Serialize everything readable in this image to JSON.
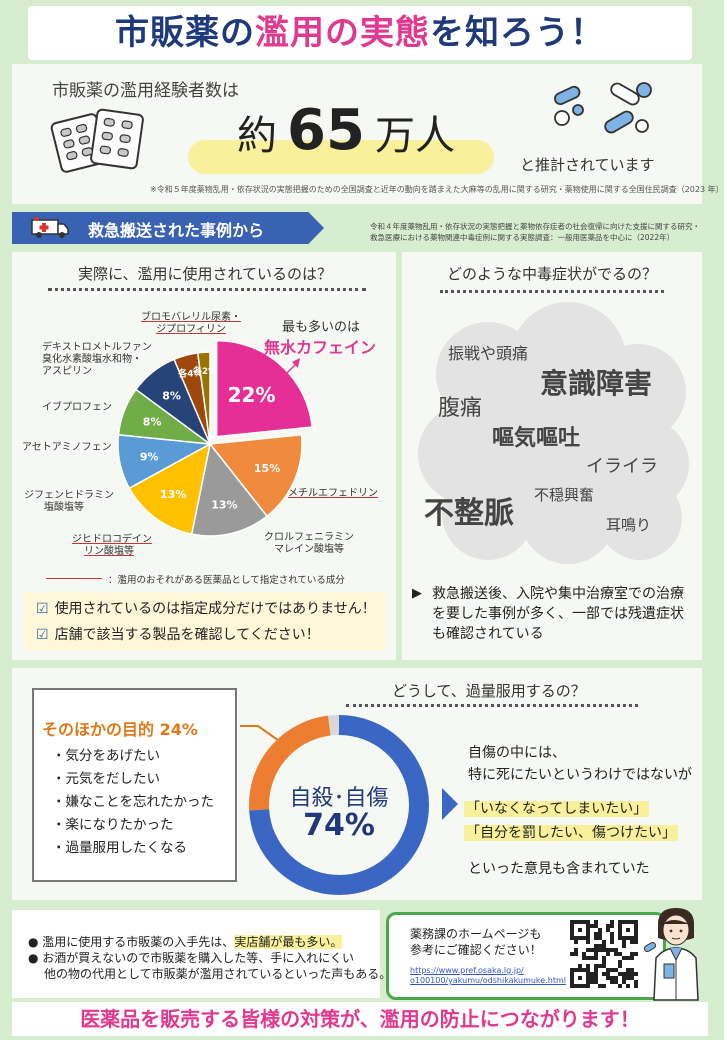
{
  "header": {
    "title_pre": "市販薬の",
    "title_pink": "濫用の実態",
    "title_post": "を知ろう！"
  },
  "stats": {
    "lead": "市販薬の濫用経験者数は",
    "prefix": "約",
    "number": "65",
    "unit": "万人",
    "tail": "と推計されています",
    "note": "※令和５年度薬物乱用・依存状況の実態把握のための全国調査と近年の動向を踏まえた大麻等の乱用に関する研究・薬物使用に関する全国住民調査（2023 年）"
  },
  "banner": {
    "label": "救急搬送された事例から",
    "note_line1": "令和４年度薬物乱用・依存状況の実態把握と薬物依存症者の社会復帰に向けた支援に関する研究・",
    "note_line2": "救急医療における薬物関連中毒症例に関する実態調査：一般用医薬品を中心に（2022年）"
  },
  "chart_panel": {
    "title": "実際に、濫用に使用されているのは？",
    "callout_top": "最も多いのは",
    "callout_main": "無水カフェイン",
    "legend_text": "：濫用のおそれがある医薬品として指定されている成分",
    "checks": [
      "使用されているのは指定成分だけではありません！",
      "店舗で該当する製品を確認してください！"
    ]
  },
  "chart_data": {
    "type": "pie",
    "title": "",
    "unit": "%",
    "slices": [
      {
        "label": "無水カフェイン",
        "value": 22,
        "display": "22%",
        "color": "#e62f96",
        "designated": false
      },
      {
        "label": "メチルエフェドリン",
        "value": 15,
        "display": "15%",
        "color": "#f08a3c",
        "designated": true
      },
      {
        "label": "クロルフェニラミンマレイン酸塩等",
        "value": 13,
        "display": "13%",
        "color": "#9a9a9a",
        "designated": false
      },
      {
        "label": "ジヒドロコデインリン酸塩等",
        "value": 13,
        "display": "13%",
        "color": "#ffc000",
        "designated": true
      },
      {
        "label": "ジフェンヒドラミン塩酸塩等",
        "value": 9,
        "display": "9%",
        "color": "#5b9bd5",
        "designated": false
      },
      {
        "label": "アセトアミノフェン",
        "value": 8,
        "display": "8%",
        "color": "#70ad47",
        "designated": false
      },
      {
        "label": "イブプロフェン",
        "value": 8,
        "display": "8%",
        "color": "#264478",
        "designated": false
      },
      {
        "label": "デキストロメトルファン臭化水素酸塩水和物・アスピリン",
        "value": 4,
        "display": "各4%",
        "color": "#9e480e",
        "designated": false
      },
      {
        "label": "ブロモバレリル尿素・ジプロフィリン",
        "value": 2,
        "display": "各2%",
        "color": "#997300",
        "designated": true
      }
    ]
  },
  "labels": {
    "bromo_1": "ブロモバレリル尿素・",
    "bromo_2": "ジプロフィリン",
    "dextro_1": "デキストロメトルファン",
    "dextro_2": "臭化水素酸塩水和物・",
    "dextro_3": "アスピリン",
    "ibu": "イブプロフェン",
    "aceto": "アセトアミノフェン",
    "diphen_1": "ジフェンヒドラミン",
    "diphen_2": "塩酸塩等",
    "dihydro_1": "ジヒドロコデイン",
    "dihydro_2": "リン酸塩等",
    "methyl": "メチルエフェドリン",
    "chlor_1": "クロルフェニラミン",
    "chlor_2": "マレイン酸塩等"
  },
  "symptoms": {
    "title": "どのような中毒症状がでるの？",
    "words": [
      "振戦や頭痛",
      "意識障害",
      "腹痛",
      "嘔気嘔吐",
      "イライラ",
      "不穏興奮",
      "不整脈",
      "耳鳴り"
    ],
    "note": "救急搬送後、入院や集中治療室での治療を要した事例が多く、一部では残遺症状も確認されている"
  },
  "overdose": {
    "title": "どうして、過量服用するの？",
    "purpose_head": "そのほかの目的 24%",
    "purposes": [
      "・気分をあげたい",
      "・元気をだしたい",
      "・嫌なことを忘れたかった",
      "・楽になりたかった",
      "・過量服用したくなる"
    ],
    "center_label": "自殺･自傷",
    "center_value": "74%",
    "right_line1": "自傷の中には、",
    "right_line2": "特に死にたいというわけではないが",
    "quote1": "「いなくなってしまいたい」",
    "quote2": "「自分を罰したい、傷つけたい」",
    "right_tail": "といった意見も含まれていた"
  },
  "overdose_chart": {
    "type": "pie",
    "slices": [
      {
        "label": "自殺･自傷",
        "value": 74,
        "color": "#3a66c4"
      },
      {
        "label": "そのほかの目的",
        "value": 24,
        "color": "#ed7d31"
      }
    ]
  },
  "bottom": {
    "item1_pre": "濫用に使用する市販薬の入手先は、",
    "item1_hl": "実店舗が最も多い。",
    "item2_l1": "お酒が買えないので市販薬を購入した等、手に入れにくい",
    "item2_l2": "他の物の代用として市販薬が濫用されているといった声もある。",
    "web_l1": "薬務課のホームページも",
    "web_l2": "参考にご確認ください！",
    "url_l1": "https://www.pref.osaka.lg.jp/",
    "url_l2": "o100100/yakumu/odshikakumuke.html",
    "footer": "医薬品を販売する皆様の対策が、濫用の防止につながります！"
  }
}
